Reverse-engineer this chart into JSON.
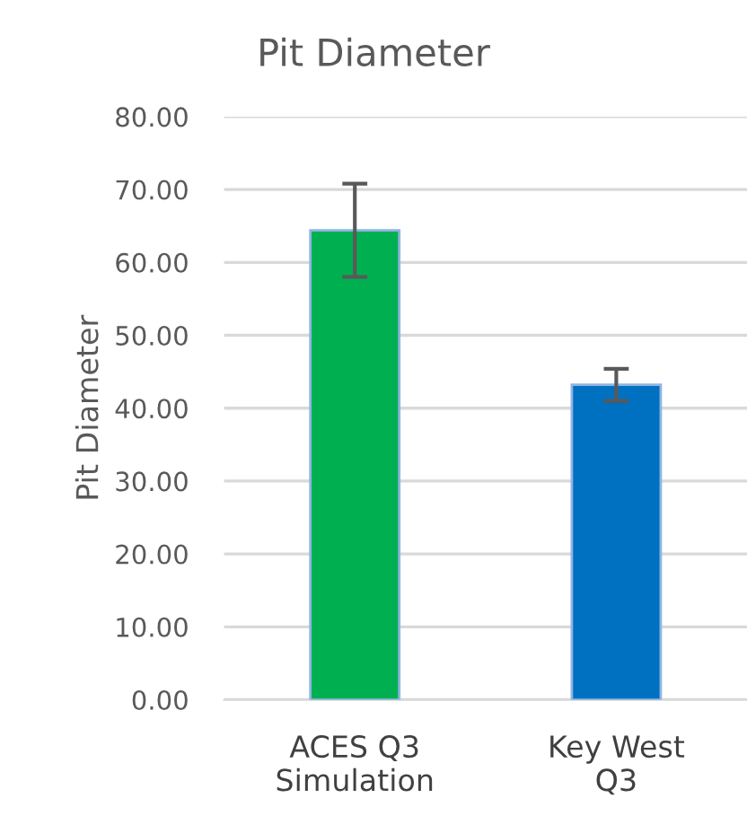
{
  "chart_data": {
    "type": "bar",
    "title": "Pit Diameter",
    "ylabel": "Pit Diameter",
    "categories": [
      "ACES Q3\nSimulation",
      "Key West\nQ3"
    ],
    "values": [
      64.4,
      43.2
    ],
    "errors": [
      6.4,
      2.2
    ],
    "colors": [
      "#00b050",
      "#0070c0"
    ],
    "ylim": [
      0,
      80
    ],
    "yticks": [
      {
        "value": 0,
        "label": "0.00"
      },
      {
        "value": 10,
        "label": "10.00"
      },
      {
        "value": 20,
        "label": "20.00"
      },
      {
        "value": 30,
        "label": "30.00"
      },
      {
        "value": 40,
        "label": "40.00"
      },
      {
        "value": 50,
        "label": "50.00"
      },
      {
        "value": 60,
        "label": "60.00"
      },
      {
        "value": 70,
        "label": "70.00"
      },
      {
        "value": 80,
        "label": "80.00"
      }
    ],
    "grid": "y",
    "legend": false
  }
}
